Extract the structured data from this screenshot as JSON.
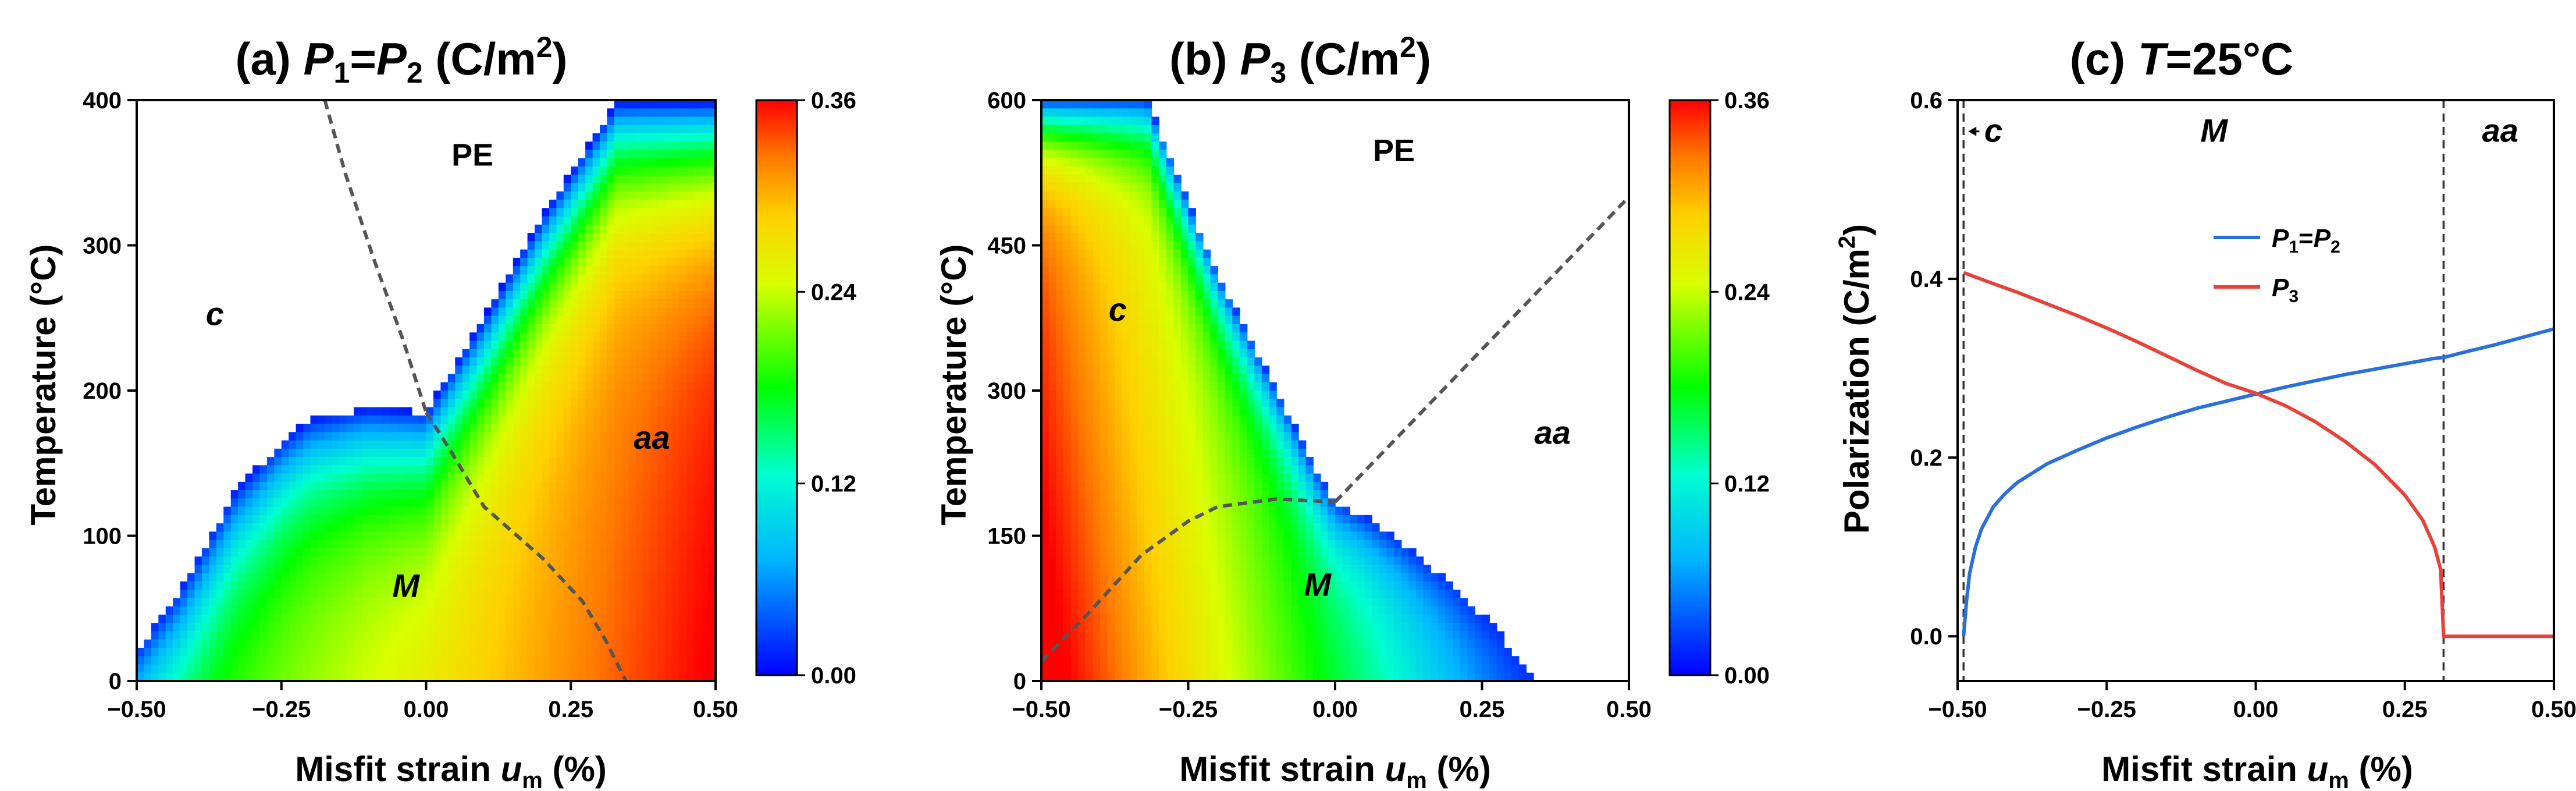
{
  "chart_data": [
    {
      "type": "heatmap",
      "title": "(a) P1=P2 (C/m2)",
      "title_parts": {
        "prefix": "(a) ",
        "var1": "P",
        "sub1": "1",
        "eq": "=",
        "var2": "P",
        "sub2": "2",
        "unit_open": " (C/m",
        "sup": "2",
        "unit_close": ")"
      },
      "xlabel": {
        "text": "Misfit strain ",
        "var": "u",
        "sub": "m",
        "unit": " (%)"
      },
      "ylabel": "Temperature (°C)",
      "xlim": [
        -0.5,
        0.5
      ],
      "ylim": [
        0,
        400
      ],
      "xticks": [
        -0.5,
        -0.25,
        0.0,
        0.25,
        0.5
      ],
      "xtick_labels": [
        "−0.50",
        "−0.25",
        "0.00",
        "0.25",
        "0.50"
      ],
      "yticks": [
        0,
        100,
        200,
        300,
        400
      ],
      "ytick_labels": [
        "0",
        "100",
        "200",
        "300",
        "400"
      ],
      "colorbar": {
        "min": 0.0,
        "max": 0.36,
        "ticks": [
          0.0,
          0.12,
          0.24,
          0.36
        ],
        "tick_labels": [
          "0.00",
          "0.12",
          "0.24",
          "0.36"
        ]
      },
      "regions": [
        {
          "label": "PE",
          "x": 0.08,
          "y": 355,
          "italic": false
        },
        {
          "label": "c",
          "x": -0.365,
          "y": 245,
          "italic": true
        },
        {
          "label": "M",
          "x": -0.035,
          "y": 58,
          "italic": true
        },
        {
          "label": "aa",
          "x": 0.39,
          "y": 160,
          "italic": true
        }
      ],
      "boundaries": [
        {
          "name": "c-PE",
          "points": [
            [
              -0.175,
              400
            ],
            [
              -0.14,
              350
            ],
            [
              -0.09,
              290
            ],
            [
              -0.04,
              235
            ],
            [
              0.0,
              185
            ]
          ]
        },
        {
          "name": "M-aa",
          "points": [
            [
              0.0,
              185
            ],
            [
              0.04,
              160
            ],
            [
              0.1,
              120
            ],
            [
              0.2,
              85
            ],
            [
              0.27,
              55
            ],
            [
              0.31,
              28
            ],
            [
              0.345,
              0
            ]
          ]
        }
      ],
      "transition_line": {
        "name": "PE-edge",
        "points": [
          [
            -0.5,
            20
          ],
          [
            -0.42,
            65
          ],
          [
            -0.33,
            130
          ],
          [
            -0.25,
            165
          ],
          [
            -0.2,
            180
          ],
          [
            -0.1,
            188
          ],
          [
            0.0,
            185
          ],
          [
            0.1,
            250
          ],
          [
            0.2,
            320
          ],
          [
            0.33,
            400
          ]
        ]
      }
    },
    {
      "type": "heatmap",
      "title": "(b) P3 (C/m2)",
      "title_parts": {
        "prefix": "(b) ",
        "var1": "P",
        "sub1": "3",
        "unit_open": " (C/m",
        "sup": "2",
        "unit_close": ")"
      },
      "xlabel": {
        "text": "Misfit strain ",
        "var": "u",
        "sub": "m",
        "unit": " (%)"
      },
      "ylabel": "Temperature (°C)",
      "xlim": [
        -0.5,
        0.5
      ],
      "ylim": [
        0,
        600
      ],
      "xticks": [
        -0.5,
        -0.25,
        0.0,
        0.25,
        0.5
      ],
      "xtick_labels": [
        "−0.50",
        "−0.25",
        "0.00",
        "0.25",
        "0.50"
      ],
      "yticks": [
        0,
        150,
        300,
        450,
        600
      ],
      "ytick_labels": [
        "0",
        "150",
        "300",
        "450",
        "600"
      ],
      "colorbar": {
        "min": 0.0,
        "max": 0.36,
        "ticks": [
          0.0,
          0.12,
          0.24,
          0.36
        ],
        "tick_labels": [
          "0.00",
          "0.12",
          "0.24",
          "0.36"
        ]
      },
      "regions": [
        {
          "label": "PE",
          "x": 0.1,
          "y": 537,
          "italic": false
        },
        {
          "label": "c",
          "x": -0.37,
          "y": 372,
          "italic": true
        },
        {
          "label": "M",
          "x": -0.03,
          "y": 88,
          "italic": true
        },
        {
          "label": "aa",
          "x": 0.37,
          "y": 245,
          "italic": true
        }
      ],
      "boundaries": [
        {
          "name": "c-M",
          "points": [
            [
              -0.5,
              20
            ],
            [
              -0.42,
              70
            ],
            [
              -0.33,
              130
            ],
            [
              -0.25,
              165
            ],
            [
              -0.2,
              180
            ],
            [
              -0.1,
              188
            ],
            [
              0.0,
              185
            ]
          ]
        },
        {
          "name": "aa-PE",
          "points": [
            [
              0.0,
              185
            ],
            [
              0.5,
              500
            ]
          ]
        }
      ],
      "transition_line": {
        "name": "PE-edge",
        "points": [
          [
            -0.32,
            600
          ],
          [
            -0.2,
            420
          ],
          [
            -0.1,
            300
          ],
          [
            -0.03,
            215
          ],
          [
            0.0,
            185
          ],
          [
            0.05,
            170
          ],
          [
            0.12,
            140
          ],
          [
            0.2,
            100
          ],
          [
            0.28,
            50
          ],
          [
            0.34,
            0
          ]
        ]
      }
    },
    {
      "type": "line",
      "title": "(c) T=25°C",
      "title_parts": {
        "prefix": "(c) ",
        "var1": "T",
        "rest": "=25°C"
      },
      "xlabel": {
        "text": "Misfit strain ",
        "var": "u",
        "sub": "m",
        "unit": " (%)"
      },
      "ylabel": {
        "text": "Polarization (C/m",
        "sup": "2",
        "close": ")"
      },
      "xlim": [
        -0.5,
        0.5
      ],
      "ylim": [
        -0.05,
        0.6
      ],
      "xticks": [
        -0.5,
        -0.25,
        0.0,
        0.25,
        0.5
      ],
      "xtick_labels": [
        "−0.50",
        "−0.25",
        "0.00",
        "0.25",
        "0.50"
      ],
      "yticks": [
        0.0,
        0.2,
        0.4,
        0.6
      ],
      "ytick_labels": [
        "0.0",
        "0.2",
        "0.4",
        "0.6"
      ],
      "phase_boundaries": [
        -0.49,
        0.315
      ],
      "phase_labels": [
        {
          "label": "c",
          "x": -0.44,
          "y": 0.565,
          "arrow": true
        },
        {
          "label": "M",
          "x": -0.07,
          "y": 0.565,
          "arrow": false
        },
        {
          "label": "aa",
          "x": 0.41,
          "y": 0.565,
          "arrow": false
        }
      ],
      "legend": {
        "location": "center-right"
      },
      "series": [
        {
          "name": "P1=P2",
          "label_parts": {
            "var1": "P",
            "sub1": "1",
            "eq": "=",
            "var2": "P",
            "sub2": "2"
          },
          "color": "#2a6fdb",
          "x": [
            -0.49,
            -0.485,
            -0.48,
            -0.47,
            -0.46,
            -0.44,
            -0.42,
            -0.4,
            -0.35,
            -0.3,
            -0.25,
            -0.2,
            -0.15,
            -0.1,
            -0.05,
            0.0,
            0.05,
            0.1,
            0.15,
            0.2,
            0.25,
            0.3,
            0.315,
            0.35,
            0.4,
            0.45,
            0.5
          ],
          "y": [
            0.0,
            0.04,
            0.07,
            0.1,
            0.12,
            0.145,
            0.16,
            0.172,
            0.193,
            0.208,
            0.222,
            0.234,
            0.245,
            0.255,
            0.263,
            0.271,
            0.279,
            0.286,
            0.293,
            0.299,
            0.305,
            0.311,
            0.312,
            0.318,
            0.326,
            0.335,
            0.344
          ]
        },
        {
          "name": "P3",
          "label_parts": {
            "var1": "P",
            "sub1": "3"
          },
          "color": "#e8413a",
          "x": [
            -0.49,
            -0.45,
            -0.4,
            -0.35,
            -0.3,
            -0.25,
            -0.2,
            -0.15,
            -0.1,
            -0.05,
            0.0,
            0.05,
            0.1,
            0.15,
            0.2,
            0.25,
            0.28,
            0.3,
            0.31,
            0.315,
            0.35,
            0.4,
            0.45,
            0.5
          ],
          "y": [
            0.407,
            0.397,
            0.385,
            0.372,
            0.359,
            0.345,
            0.33,
            0.314,
            0.298,
            0.283,
            0.272,
            0.258,
            0.24,
            0.218,
            0.192,
            0.158,
            0.13,
            0.1,
            0.075,
            0.0,
            0.0,
            0.0,
            0.0,
            0.0
          ]
        }
      ]
    }
  ]
}
